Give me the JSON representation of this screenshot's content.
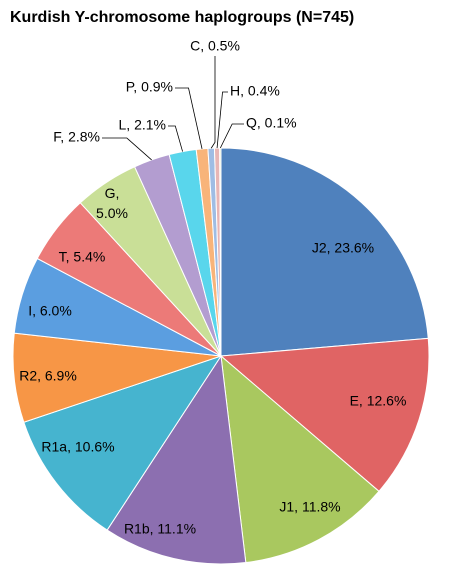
{
  "chart_data": {
    "type": "pie",
    "title": "Kurdish Y-chromosome haplogroups (N=745)",
    "values": [
      23.6,
      12.6,
      11.8,
      11.1,
      10.6,
      6.9,
      6.0,
      5.4,
      5.0,
      2.8,
      2.1,
      0.9,
      0.5,
      0.4,
      0.1
    ],
    "value_labels": [
      "J2, 23.6%",
      "E, 12.6%",
      "J1, 11.8%",
      "R1b, 11.1%",
      "R1a, 10.6%",
      "R2, 6.9%",
      "I, 6.0%",
      "T, 5.4%",
      "G, 5.0%",
      "F, 2.8%",
      "L, 2.1%",
      "P, 0.9%",
      "C, 0.5%",
      "H, 0.4%",
      "Q, 0.1%"
    ],
    "colors": [
      "#4f81bd",
      "#e06464",
      "#a9c85f",
      "#8c6fb0",
      "#46b4cf",
      "#f79646",
      "#5b9ee0",
      "#ec7a78",
      "#c9df97",
      "#b39dd0",
      "#59d6ec",
      "#f8b47a",
      "#9fbde4",
      "#e8b6b5",
      "#d3e3b5"
    ]
  }
}
